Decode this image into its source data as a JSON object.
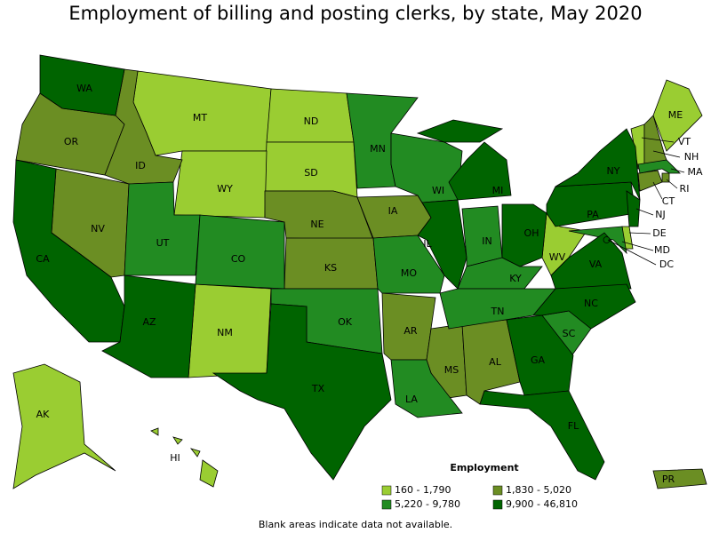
{
  "title": "Employment of billing and posting clerks, by state, May 2020",
  "legend": {
    "title": "Employment",
    "bins": [
      {
        "label": "160 - 1,790",
        "color": "#9acd32",
        "states": [
          "MT",
          "ND",
          "SD",
          "WY",
          "NM",
          "AK",
          "HI",
          "ME",
          "VT",
          "WV",
          "DE"
        ]
      },
      {
        "label": "1,830 - 5,020",
        "color": "#6b8e23",
        "states": [
          "OR",
          "ID",
          "NV",
          "NE",
          "IA",
          "KS",
          "AR",
          "MS",
          "AL",
          "NH",
          "CT",
          "RI",
          "PR"
        ]
      },
      {
        "label": "5,220 - 9,780",
        "color": "#228b22",
        "states": [
          "UT",
          "CO",
          "MN",
          "WI",
          "MO",
          "OK",
          "IN",
          "KY",
          "TN",
          "SC",
          "LA",
          "MA",
          "MD"
        ]
      },
      {
        "label": "9,900 - 46,810",
        "color": "#006400",
        "states": [
          "WA",
          "CA",
          "AZ",
          "TX",
          "IL",
          "MI",
          "OH",
          "PA",
          "NY",
          "NJ",
          "VA",
          "NC",
          "GA",
          "FL",
          "DC"
        ]
      }
    ]
  },
  "footnote": "Blank areas indicate data not available."
}
